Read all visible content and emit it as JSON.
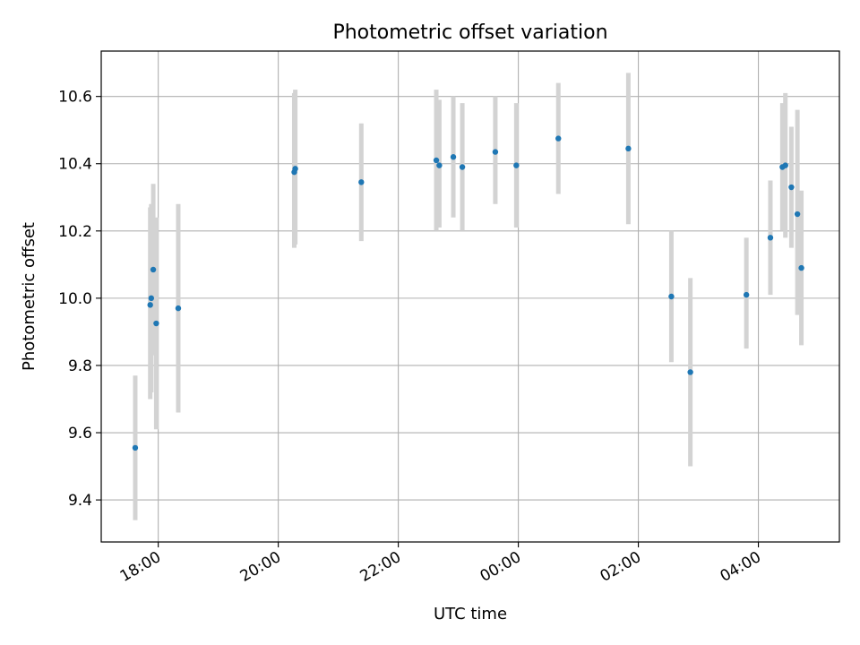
{
  "chart_data": {
    "type": "scatter",
    "title": "Photometric offset variation",
    "xlabel": "UTC time",
    "ylabel": "Photometric offset",
    "grid": true,
    "x_tick_labels": [
      "18:00",
      "20:00",
      "22:00",
      "00:00",
      "02:00",
      "04:00"
    ],
    "x_tick_times": [
      "2024-01-01T18:00",
      "2024-01-01T20:00",
      "2024-01-01T22:00",
      "2024-01-02T00:00",
      "2024-01-02T02:00",
      "2024-01-02T04:00"
    ],
    "y_ticks": [
      "9.4",
      "9.6",
      "9.8",
      "10.0",
      "10.2",
      "10.4",
      "10.6"
    ],
    "xlim": [
      "2024-01-01T17:03",
      "2024-01-02T05:21"
    ],
    "ylim": [
      9.275,
      10.735
    ],
    "colors": {
      "point": "#1f77b4",
      "errorbar": "#d3d3d3",
      "grid": "#b0b0b0"
    },
    "points": [
      {
        "t": "2024-01-01T17:37",
        "y": 9.555,
        "lo": 9.34,
        "hi": 9.77
      },
      {
        "t": "2024-01-01T17:52",
        "y": 9.98,
        "lo": 9.7,
        "hi": 10.27
      },
      {
        "t": "2024-01-01T17:53",
        "y": 10.0,
        "lo": 9.72,
        "hi": 10.28
      },
      {
        "t": "2024-01-01T17:55",
        "y": 10.085,
        "lo": 9.83,
        "hi": 10.34
      },
      {
        "t": "2024-01-01T17:58",
        "y": 9.925,
        "lo": 9.61,
        "hi": 10.24
      },
      {
        "t": "2024-01-01T18:20",
        "y": 9.97,
        "lo": 9.66,
        "hi": 10.28
      },
      {
        "t": "2024-01-01T20:16",
        "y": 10.375,
        "lo": 10.15,
        "hi": 10.61
      },
      {
        "t": "2024-01-01T20:17",
        "y": 10.385,
        "lo": 10.16,
        "hi": 10.62
      },
      {
        "t": "2024-01-01T21:23",
        "y": 10.345,
        "lo": 10.17,
        "hi": 10.52
      },
      {
        "t": "2024-01-01T22:38",
        "y": 10.41,
        "lo": 10.2,
        "hi": 10.62
      },
      {
        "t": "2024-01-01T22:41",
        "y": 10.395,
        "lo": 10.21,
        "hi": 10.59
      },
      {
        "t": "2024-01-01T22:55",
        "y": 10.42,
        "lo": 10.24,
        "hi": 10.6
      },
      {
        "t": "2024-01-01T23:04",
        "y": 10.39,
        "lo": 10.2,
        "hi": 10.58
      },
      {
        "t": "2024-01-01T23:37",
        "y": 10.435,
        "lo": 10.28,
        "hi": 10.6
      },
      {
        "t": "2024-01-01T23:58",
        "y": 10.395,
        "lo": 10.21,
        "hi": 10.58
      },
      {
        "t": "2024-01-02T00:40",
        "y": 10.475,
        "lo": 10.31,
        "hi": 10.64
      },
      {
        "t": "2024-01-02T01:50",
        "y": 10.445,
        "lo": 10.22,
        "hi": 10.67
      },
      {
        "t": "2024-01-02T02:33",
        "y": 10.005,
        "lo": 9.81,
        "hi": 10.2
      },
      {
        "t": "2024-01-02T02:52",
        "y": 9.78,
        "lo": 9.5,
        "hi": 10.06
      },
      {
        "t": "2024-01-02T03:48",
        "y": 10.01,
        "lo": 9.85,
        "hi": 10.18
      },
      {
        "t": "2024-01-02T04:12",
        "y": 10.18,
        "lo": 10.01,
        "hi": 10.35
      },
      {
        "t": "2024-01-02T04:24",
        "y": 10.39,
        "lo": 10.2,
        "hi": 10.58
      },
      {
        "t": "2024-01-02T04:27",
        "y": 10.395,
        "lo": 10.18,
        "hi": 10.61
      },
      {
        "t": "2024-01-02T04:33",
        "y": 10.33,
        "lo": 10.15,
        "hi": 10.51
      },
      {
        "t": "2024-01-02T04:39",
        "y": 10.25,
        "lo": 9.95,
        "hi": 10.56
      },
      {
        "t": "2024-01-02T04:43",
        "y": 10.09,
        "lo": 9.86,
        "hi": 10.32
      }
    ]
  }
}
